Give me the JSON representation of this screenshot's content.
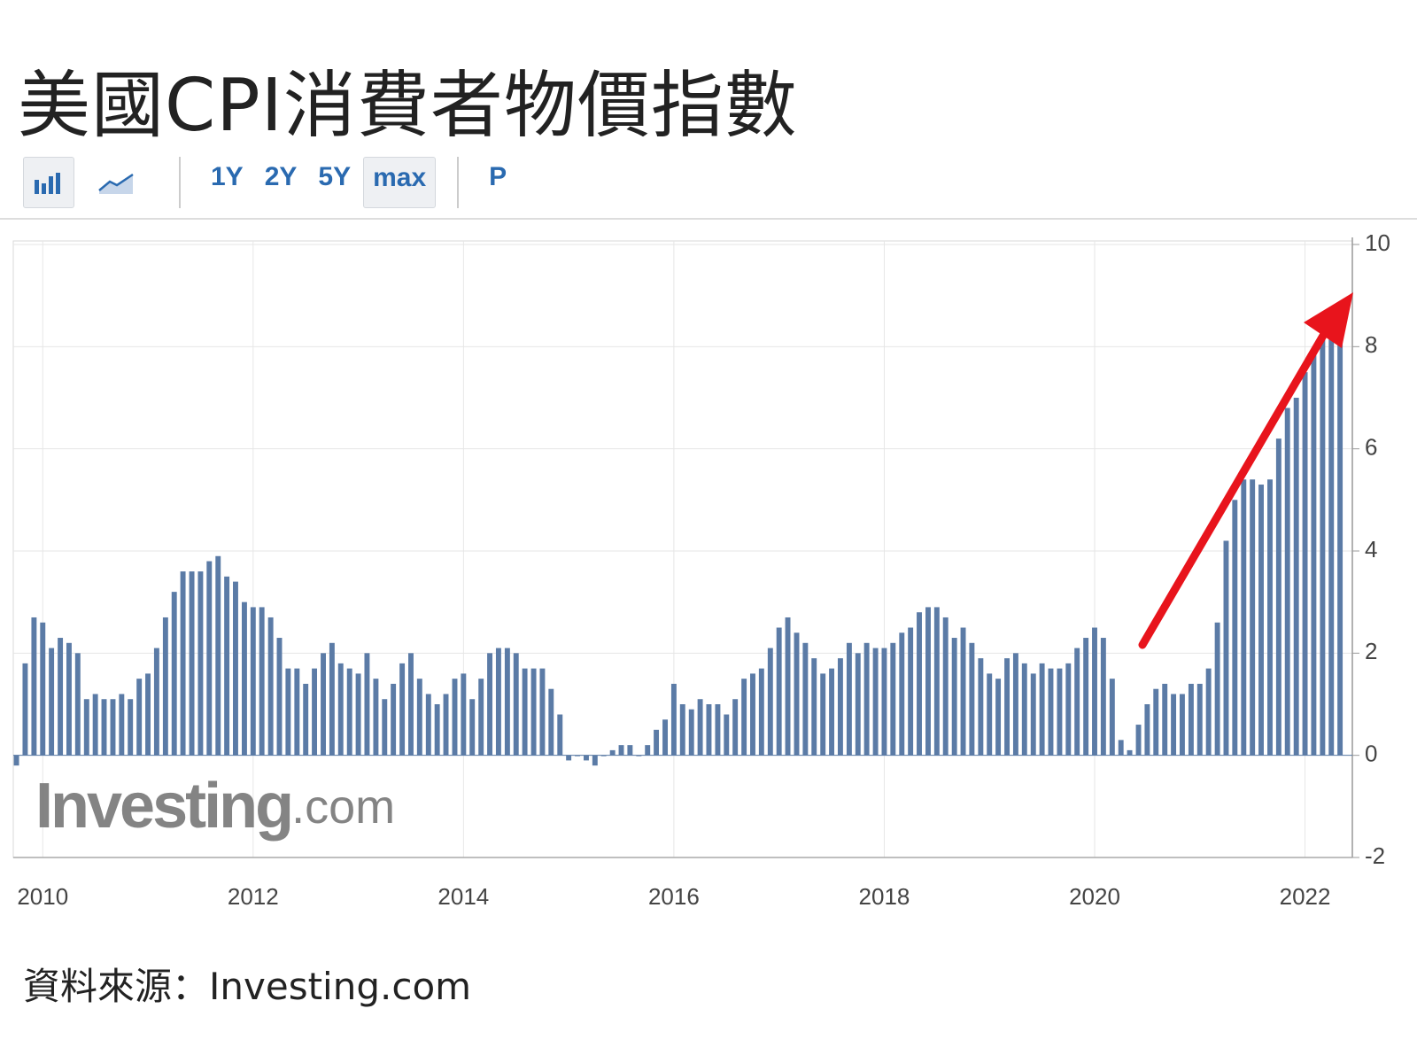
{
  "chart_data": {
    "type": "bar",
    "title": "美國CPI消費者物價指數",
    "toolbar": [
      "1Y",
      "2Y",
      "5Y",
      "max",
      "P"
    ],
    "watermark": {
      "brand": "Investing",
      "suffix": ".com"
    },
    "source": "資料來源：Investing.com",
    "color": "#5b7ba6",
    "grid": true,
    "y_axis_side": "right",
    "x": [
      2009.75,
      2009.833,
      2009.917,
      2010,
      2010.083,
      2010.167,
      2010.25,
      2010.333,
      2010.417,
      2010.5,
      2010.583,
      2010.667,
      2010.75,
      2010.833,
      2010.917,
      2011,
      2011.083,
      2011.167,
      2011.25,
      2011.333,
      2011.417,
      2011.5,
      2011.583,
      2011.667,
      2011.75,
      2011.833,
      2011.917,
      2012,
      2012.083,
      2012.167,
      2012.25,
      2012.333,
      2012.417,
      2012.5,
      2012.583,
      2012.667,
      2012.75,
      2012.833,
      2012.917,
      2013,
      2013.083,
      2013.167,
      2013.25,
      2013.333,
      2013.417,
      2013.5,
      2013.583,
      2013.667,
      2013.75,
      2013.833,
      2013.917,
      2014,
      2014.083,
      2014.167,
      2014.25,
      2014.333,
      2014.417,
      2014.5,
      2014.583,
      2014.667,
      2014.75,
      2014.833,
      2014.917,
      2015,
      2015.083,
      2015.167,
      2015.25,
      2015.333,
      2015.417,
      2015.5,
      2015.583,
      2015.667,
      2015.75,
      2015.833,
      2015.917,
      2016,
      2016.083,
      2016.167,
      2016.25,
      2016.333,
      2016.417,
      2016.5,
      2016.583,
      2016.667,
      2016.75,
      2016.833,
      2016.917,
      2017,
      2017.083,
      2017.167,
      2017.25,
      2017.333,
      2017.417,
      2017.5,
      2017.583,
      2017.667,
      2017.75,
      2017.833,
      2017.917,
      2018,
      2018.083,
      2018.167,
      2018.25,
      2018.333,
      2018.417,
      2018.5,
      2018.583,
      2018.667,
      2018.75,
      2018.833,
      2018.917,
      2019,
      2019.083,
      2019.167,
      2019.25,
      2019.333,
      2019.417,
      2019.5,
      2019.583,
      2019.667,
      2019.75,
      2019.833,
      2019.917,
      2020,
      2020.083,
      2020.167,
      2020.25,
      2020.333,
      2020.417,
      2020.5,
      2020.583,
      2020.667,
      2020.75,
      2020.833,
      2020.917,
      2021,
      2021.083,
      2021.167,
      2021.25,
      2021.333,
      2021.417,
      2021.5,
      2021.583,
      2021.667,
      2021.75,
      2021.833,
      2021.917,
      2022,
      2022.083,
      2022.167,
      2022.25,
      2022.333
    ],
    "values": [
      -0.2,
      1.8,
      2.7,
      2.6,
      2.1,
      2.3,
      2.2,
      2.0,
      1.1,
      1.2,
      1.1,
      1.1,
      1.2,
      1.1,
      1.5,
      1.6,
      2.1,
      2.7,
      3.2,
      3.6,
      3.6,
      3.6,
      3.8,
      3.9,
      3.5,
      3.4,
      3.0,
      2.9,
      2.9,
      2.7,
      2.3,
      1.7,
      1.7,
      1.4,
      1.7,
      2.0,
      2.2,
      1.8,
      1.7,
      1.6,
      2.0,
      1.5,
      1.1,
      1.4,
      1.8,
      2.0,
      1.5,
      1.2,
      1.0,
      1.2,
      1.5,
      1.6,
      1.1,
      1.5,
      2.0,
      2.1,
      2.1,
      2.0,
      1.7,
      1.7,
      1.7,
      1.3,
      0.8,
      -0.1,
      0.0,
      -0.1,
      -0.2,
      0.0,
      0.1,
      0.2,
      0.2,
      0.0,
      0.2,
      0.5,
      0.7,
      1.4,
      1.0,
      0.9,
      1.1,
      1.0,
      1.0,
      0.8,
      1.1,
      1.5,
      1.6,
      1.7,
      2.1,
      2.5,
      2.7,
      2.4,
      2.2,
      1.9,
      1.6,
      1.7,
      1.9,
      2.2,
      2.0,
      2.2,
      2.1,
      2.1,
      2.2,
      2.4,
      2.5,
      2.8,
      2.9,
      2.9,
      2.7,
      2.3,
      2.5,
      2.2,
      1.9,
      1.6,
      1.5,
      1.9,
      2.0,
      1.8,
      1.6,
      1.8,
      1.7,
      1.7,
      1.8,
      2.1,
      2.3,
      2.5,
      2.3,
      1.5,
      0.3,
      0.1,
      0.6,
      1.0,
      1.3,
      1.4,
      1.2,
      1.2,
      1.4,
      1.4,
      1.7,
      2.6,
      4.2,
      5.0,
      5.4,
      5.4,
      5.3,
      5.4,
      6.2,
      6.8,
      7.0,
      7.5,
      7.9,
      8.5,
      8.3,
      8.6
    ],
    "xlim": [
      2009.72,
      2022.45
    ],
    "xticks": [
      2010,
      2012,
      2014,
      2016,
      2018,
      2020,
      2022
    ],
    "ylim": [
      -2,
      10
    ],
    "yticks": [
      -2,
      0,
      2,
      4,
      6,
      8,
      10
    ]
  }
}
